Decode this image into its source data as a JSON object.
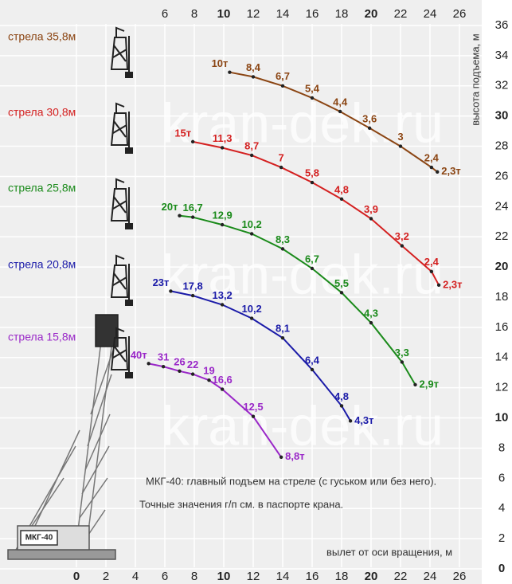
{
  "chart_data": {
    "type": "line",
    "watermark": "kran-dek.ru",
    "model_label": "МКГ-40",
    "notes": [
      "МКГ-40: главный подъем на стреле (с гуськом или без него).",
      "Точные значения г/п см. в паспорте крана."
    ],
    "xlabel": "вылет от оси вращения, м",
    "ylabel": "высота подъема, м",
    "xlim": [
      -5,
      27
    ],
    "ylim": [
      0,
      36
    ],
    "xticks": [
      0,
      2,
      4,
      6,
      8,
      10,
      12,
      14,
      16,
      18,
      20,
      22,
      24,
      26
    ],
    "x2ticks": [
      6,
      8,
      10,
      12,
      14,
      16,
      18,
      20,
      22,
      24,
      26
    ],
    "yticks": [
      0,
      2,
      4,
      6,
      8,
      10,
      12,
      14,
      16,
      18,
      20,
      22,
      24,
      26,
      28,
      30,
      32,
      34,
      36
    ],
    "grid": true,
    "series": [
      {
        "name": "стрела 35,8м",
        "color": "#8b4513",
        "x": [
          10.4,
          12.0,
          14.0,
          16.0,
          17.9,
          19.9,
          22.0,
          24.1,
          24.5
        ],
        "values": [
          32.9,
          32.6,
          32.0,
          31.2,
          30.3,
          29.2,
          28.0,
          26.6,
          26.3
        ],
        "labels": [
          "10т",
          "8,4",
          "6,7",
          "5,4",
          "4,4",
          "3,6",
          "3",
          "2,4",
          "2,3т"
        ]
      },
      {
        "name": "стрела 30,8м",
        "color": "#d42020",
        "x": [
          7.9,
          9.9,
          11.9,
          13.9,
          16.0,
          18.0,
          20.0,
          22.1,
          24.1,
          24.6
        ],
        "values": [
          28.3,
          27.9,
          27.4,
          26.6,
          25.6,
          24.5,
          23.2,
          21.4,
          19.7,
          18.8
        ],
        "labels": [
          "15т",
          "11,3",
          "8,7",
          "7",
          "5,8",
          "4,8",
          "3,9",
          "3,2",
          "2,4",
          "2,3т"
        ]
      },
      {
        "name": "стрела 25,8м",
        "color": "#1a8a1a",
        "x": [
          7.0,
          7.9,
          9.9,
          11.9,
          14.0,
          16.0,
          18.0,
          20.0,
          22.1,
          23.0
        ],
        "values": [
          23.4,
          23.3,
          22.8,
          22.2,
          21.2,
          19.9,
          18.3,
          16.3,
          13.7,
          12.2
        ],
        "labels": [
          "20т",
          "16,7",
          "12,9",
          "10,2",
          "8,3",
          "6,7",
          "5,5",
          "4,3",
          "3,3",
          "2,9т"
        ]
      },
      {
        "name": "стрела 20,8м",
        "color": "#1a1aa8",
        "x": [
          6.4,
          7.9,
          9.9,
          11.9,
          14.0,
          16.0,
          18.0,
          18.6
        ],
        "values": [
          18.4,
          18.1,
          17.5,
          16.6,
          15.3,
          13.2,
          10.8,
          9.8
        ],
        "labels": [
          "23т",
          "17,8",
          "13,2",
          "10,2",
          "8,1",
          "6,4",
          "4,8",
          "4,3т"
        ]
      },
      {
        "name": "стрела 15,8м",
        "color": "#9a28c8",
        "x": [
          4.9,
          5.9,
          7.0,
          7.9,
          9.0,
          9.9,
          12.0,
          13.9
        ],
        "values": [
          13.6,
          13.4,
          13.1,
          12.9,
          12.5,
          11.9,
          10.1,
          7.4
        ],
        "labels": [
          "40т",
          "31",
          "26",
          "22",
          "19",
          "16,6",
          "12,5",
          "8,8т"
        ]
      }
    ]
  }
}
